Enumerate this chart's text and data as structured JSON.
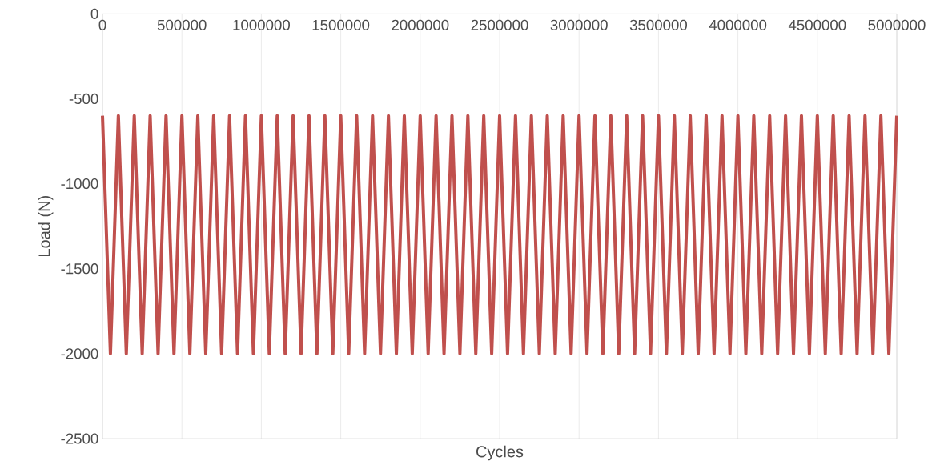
{
  "chart_data": {
    "type": "line",
    "xlabel": "Cycles",
    "ylabel": "Load (N)",
    "x": [
      0,
      50000,
      100000,
      150000,
      200000,
      250000,
      300000,
      350000,
      400000,
      450000,
      500000,
      550000,
      600000,
      650000,
      700000,
      750000,
      800000,
      850000,
      900000,
      950000,
      1000000,
      1050000,
      1100000,
      1150000,
      1200000,
      1250000,
      1300000,
      1350000,
      1400000,
      1450000,
      1500000,
      1550000,
      1600000,
      1650000,
      1700000,
      1750000,
      1800000,
      1850000,
      1900000,
      1950000,
      2000000,
      2050000,
      2100000,
      2150000,
      2200000,
      2250000,
      2300000,
      2350000,
      2400000,
      2450000,
      2500000,
      2550000,
      2600000,
      2650000,
      2700000,
      2750000,
      2800000,
      2850000,
      2900000,
      2950000,
      3000000,
      3050000,
      3100000,
      3150000,
      3200000,
      3250000,
      3300000,
      3350000,
      3400000,
      3450000,
      3500000,
      3550000,
      3600000,
      3650000,
      3700000,
      3750000,
      3800000,
      3850000,
      3900000,
      3950000,
      4000000,
      4050000,
      4100000,
      4150000,
      4200000,
      4250000,
      4300000,
      4350000,
      4400000,
      4450000,
      4500000,
      4550000,
      4600000,
      4650000,
      4700000,
      4750000,
      4800000,
      4850000,
      4900000,
      4950000,
      5000000
    ],
    "series": [
      {
        "color": "#c0504d",
        "values": [
          -600,
          -2000,
          -600,
          -2000,
          -600,
          -2000,
          -600,
          -2000,
          -600,
          -2000,
          -600,
          -2000,
          -600,
          -2000,
          -600,
          -2000,
          -600,
          -2000,
          -600,
          -2000,
          -600,
          -2000,
          -600,
          -2000,
          -600,
          -2000,
          -600,
          -2000,
          -600,
          -2000,
          -600,
          -2000,
          -600,
          -2000,
          -600,
          -2000,
          -600,
          -2000,
          -600,
          -2000,
          -600,
          -2000,
          -600,
          -2000,
          -600,
          -2000,
          -600,
          -2000,
          -600,
          -2000,
          -600,
          -2000,
          -600,
          -2000,
          -600,
          -2000,
          -600,
          -2000,
          -600,
          -2000,
          -600,
          -2000,
          -600,
          -2000,
          -600,
          -2000,
          -600,
          -2000,
          -600,
          -2000,
          -600,
          -2000,
          -600,
          -2000,
          -600,
          -2000,
          -600,
          -2000,
          -600,
          -2000,
          -600,
          -2000,
          -600,
          -2000,
          -600,
          -2000,
          -600,
          -2000,
          -600,
          -2000,
          -600,
          -2000,
          -600,
          -2000,
          -600,
          -2000,
          -600,
          -2000,
          -600,
          -2000,
          -600
        ]
      }
    ],
    "xlim": [
      0,
      5000000
    ],
    "ylim": [
      -2500,
      0
    ],
    "xticks": [
      0,
      500000,
      1000000,
      1500000,
      2000000,
      2500000,
      3000000,
      3500000,
      4000000,
      4500000,
      5000000
    ],
    "yticks": [
      -2500,
      -2000,
      -1500,
      -1000,
      -500,
      0
    ],
    "grid": "x",
    "marker": "none",
    "line_style": "solid"
  }
}
